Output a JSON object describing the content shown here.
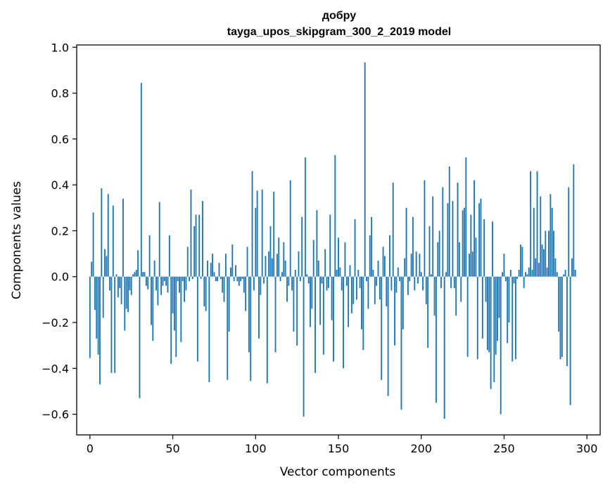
{
  "chart_data": {
    "type": "bar",
    "title": "добру",
    "subtitle": "tayga_upos_skipgram_300_2_2019 model",
    "xlabel": "Vector components",
    "ylabel": "Components values",
    "xlim": [
      -8,
      308
    ],
    "ylim": [
      -0.69,
      1.01
    ],
    "xticks": [
      0,
      50,
      100,
      150,
      200,
      250,
      300
    ],
    "xtick_labels": [
      "0",
      "50",
      "100",
      "150",
      "200",
      "250",
      "300"
    ],
    "yticks": [
      -0.6,
      -0.4,
      -0.2,
      0.0,
      0.2,
      0.4,
      0.6,
      0.8,
      1.0
    ],
    "ytick_labels": [
      "−0.6",
      "−0.4",
      "−0.2",
      "0.0",
      "0.2",
      "0.4",
      "0.6",
      "0.8",
      "1.0"
    ],
    "bar_color": "#1f77b4",
    "grid": false,
    "x": "indices 0..299",
    "values": [
      -0.355,
      0.065,
      0.28,
      -0.145,
      -0.27,
      -0.34,
      -0.47,
      0.385,
      -0.18,
      0.12,
      0.09,
      0.36,
      -0.06,
      -0.42,
      0.31,
      -0.42,
      0.01,
      -0.09,
      -0.05,
      -0.12,
      0.34,
      -0.235,
      -0.14,
      -0.155,
      -0.06,
      -0.08,
      0.01,
      0.02,
      0.03,
      0.115,
      -0.53,
      0.845,
      0.02,
      0.02,
      -0.04,
      -0.055,
      0.18,
      -0.21,
      -0.28,
      0.07,
      -0.06,
      -0.125,
      0.325,
      -0.08,
      -0.04,
      -0.02,
      -0.04,
      -0.07,
      0.18,
      -0.38,
      -0.16,
      -0.235,
      -0.35,
      -0.02,
      -0.07,
      -0.285,
      -0.02,
      -0.11,
      -0.06,
      0.13,
      -0.02,
      0.38,
      -0.01,
      0.22,
      0.27,
      -0.37,
      0.27,
      -0.01,
      0.33,
      -0.13,
      -0.15,
      0.07,
      -0.46,
      0.06,
      0.1,
      0.02,
      -0.02,
      -0.02,
      0.06,
      -0.01,
      -0.07,
      -0.11,
      0.1,
      -0.45,
      -0.24,
      0.04,
      0.14,
      -0.02,
      0.05,
      -0.02,
      -0.04,
      -0.02,
      -0.01,
      -0.07,
      -0.15,
      0.13,
      -0.33,
      -0.455,
      0.46,
      -0.06,
      0.3,
      0.375,
      -0.27,
      -0.08,
      0.38,
      -0.03,
      0.09,
      -0.465,
      0.11,
      0.22,
      0.08,
      0.37,
      -0.33,
      0.1,
      0.17,
      -0.02,
      0.02,
      0.15,
      0.07,
      -0.11,
      -0.04,
      0.42,
      -0.06,
      -0.24,
      0.03,
      -0.3,
      0.11,
      -0.02,
      0.26,
      -0.61,
      0.52,
      0.01,
      -0.03,
      -0.22,
      -0.14,
      0.16,
      -0.42,
      0.29,
      0.07,
      -0.21,
      -0.03,
      -0.34,
      0.12,
      -0.06,
      -0.05,
      0.27,
      -0.19,
      -0.37,
      0.53,
      0.03,
      0.17,
      0.04,
      -0.06,
      -0.4,
      0.15,
      -0.04,
      -0.22,
      0.05,
      -0.16,
      -0.12,
      0.25,
      -0.1,
      0.03,
      -0.05,
      -0.23,
      -0.32,
      0.934,
      -0.02,
      -0.14,
      0.18,
      0.26,
      0.03,
      -0.12,
      -0.04,
      0.07,
      -0.1,
      -0.45,
      0.13,
      0.09,
      -0.13,
      -0.52,
      0.18,
      -0.06,
      0.41,
      -0.3,
      -0.07,
      0.04,
      -0.02,
      -0.58,
      -0.23,
      0.08,
      0.3,
      -0.08,
      -0.02,
      0.1,
      0.26,
      -0.06,
      0.11,
      -0.03,
      0.1,
      0.02,
      -0.06,
      0.42,
      -0.12,
      -0.31,
      0.22,
      0.01,
      0.35,
      -0.17,
      -0.55,
      0.15,
      0.2,
      -0.05,
      0.39,
      -0.62,
      0.02,
      0.32,
      0.48,
      -0.05,
      0.33,
      -0.05,
      -0.17,
      0.41,
      0.15,
      -0.11,
      0.29,
      0.3,
      0.52,
      -0.35,
      0.1,
      0.27,
      0.11,
      0.42,
      0.17,
      -0.36,
      0.32,
      0.34,
      -0.27,
      0.25,
      -0.11,
      -0.32,
      -0.33,
      -0.49,
      0.24,
      -0.46,
      -0.34,
      -0.28,
      -0.18,
      -0.6,
      0.02,
      0.1,
      -0.02,
      -0.29,
      -0.2,
      0.03,
      -0.37,
      -0.03,
      -0.36,
      -0.01,
      0.03,
      0.14,
      0.13,
      -0.05,
      0.02,
      0.01,
      0.04,
      0.46,
      0.03,
      0.3,
      0.08,
      0.46,
      0.06,
      0.35,
      0.14,
      0.12,
      0.2,
      0.04,
      0.2,
      0.36,
      0.3,
      0.2,
      0.08,
      0.02,
      -0.24,
      -0.36,
      -0.35,
      0.01,
      0.03,
      -0.39,
      0.39,
      -0.56,
      0.08,
      0.49,
      0.03
    ]
  }
}
